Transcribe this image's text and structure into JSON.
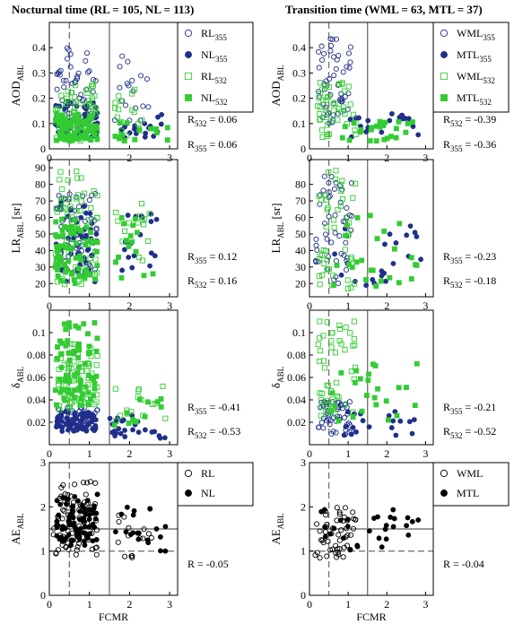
{
  "colors": {
    "dark_blue": "#1f2f8a",
    "green": "#33cc33",
    "black": "#000000",
    "grid": "#777777"
  },
  "columns": [
    {
      "title": "Nocturnal time (RL = 105, NL = 113)"
    },
    {
      "title": "Transition time (WML = 63, MTL = 37)"
    }
  ],
  "x_axis": {
    "label": "FCMR",
    "ticks": [
      0,
      1,
      2,
      3
    ],
    "range": [
      0,
      3.2
    ]
  },
  "chart_data": [
    {
      "type": "scatter",
      "panel": "AOD",
      "column": 0,
      "ylabel": "AOD",
      "ylabel_sub": "ABL",
      "ylim": [
        0,
        0.5
      ],
      "yticks": [
        "0",
        "0.1",
        "0.2",
        "0.3",
        "0.4"
      ],
      "ytick_values": [
        0,
        0.1,
        0.2,
        0.3,
        0.4
      ],
      "vlines": [
        {
          "x": 0.5,
          "style": "dashed"
        },
        {
          "x": 1.5,
          "style": "solid"
        }
      ],
      "legend": [
        {
          "name": "RL",
          "sub": "355",
          "marker": "open-circle",
          "color": "#1f2f8a"
        },
        {
          "name": "NL",
          "sub": "355",
          "marker": "filled-circle",
          "color": "#1f2f8a"
        },
        {
          "name": "RL",
          "sub": "532",
          "marker": "open-square",
          "color": "#33cc33"
        },
        {
          "name": "NL",
          "sub": "532",
          "marker": "filled-square",
          "color": "#33cc33"
        }
      ],
      "annotations": [
        {
          "name": "R",
          "sub": "532",
          "value": "= 0.06"
        },
        {
          "name": "R",
          "sub": "355",
          "value": "= 0.06"
        }
      ],
      "clusters": [
        {
          "marker": "open-circle",
          "color": "#1f2f8a",
          "n": 60,
          "x": [
            0.15,
            1.2
          ],
          "y": [
            0.06,
            0.4
          ],
          "seed": 11
        },
        {
          "marker": "open-circle",
          "color": "#1f2f8a",
          "n": 18,
          "x": [
            1.6,
            2.5
          ],
          "y": [
            0.08,
            0.38
          ],
          "seed": 12
        },
        {
          "marker": "filled-circle",
          "color": "#1f2f8a",
          "n": 55,
          "x": [
            0.15,
            1.2
          ],
          "y": [
            0.04,
            0.19
          ],
          "seed": 13
        },
        {
          "marker": "filled-circle",
          "color": "#1f2f8a",
          "n": 18,
          "x": [
            1.6,
            3.0
          ],
          "y": [
            0.04,
            0.15
          ],
          "seed": 14
        },
        {
          "marker": "open-square",
          "color": "#33cc33",
          "n": 60,
          "x": [
            0.15,
            1.2
          ],
          "y": [
            0.03,
            0.26
          ],
          "seed": 15
        },
        {
          "marker": "open-square",
          "color": "#33cc33",
          "n": 15,
          "x": [
            1.6,
            2.4
          ],
          "y": [
            0.05,
            0.24
          ],
          "seed": 16
        },
        {
          "marker": "filled-square",
          "color": "#33cc33",
          "n": 80,
          "x": [
            0.15,
            1.2
          ],
          "y": [
            0.03,
            0.14
          ],
          "seed": 17
        },
        {
          "marker": "filled-square",
          "color": "#33cc33",
          "n": 15,
          "x": [
            1.6,
            3.0
          ],
          "y": [
            0.03,
            0.11
          ],
          "seed": 18
        }
      ]
    },
    {
      "type": "scatter",
      "panel": "AOD",
      "column": 1,
      "ylabel": "AOD",
      "ylabel_sub": "ABL",
      "ylim": [
        0,
        0.5
      ],
      "yticks": [
        "0",
        "0.1",
        "0.2",
        "0.3",
        "0.4"
      ],
      "ytick_values": [
        0,
        0.1,
        0.2,
        0.3,
        0.4
      ],
      "vlines": [
        {
          "x": 0.5,
          "style": "dashed"
        },
        {
          "x": 1.5,
          "style": "solid"
        }
      ],
      "legend": [
        {
          "name": "WML",
          "sub": "355",
          "marker": "open-circle",
          "color": "#1f2f8a"
        },
        {
          "name": "MTL",
          "sub": "355",
          "marker": "filled-circle",
          "color": "#1f2f8a"
        },
        {
          "name": "WML",
          "sub": "532",
          "marker": "open-square",
          "color": "#33cc33"
        },
        {
          "name": "MTL",
          "sub": "532",
          "marker": "filled-square",
          "color": "#33cc33"
        }
      ],
      "annotations": [
        {
          "name": "R",
          "sub": "532",
          "value": "= -0.39"
        },
        {
          "name": "R",
          "sub": "355",
          "value": "= -0.36"
        }
      ],
      "clusters": [
        {
          "marker": "open-circle",
          "color": "#1f2f8a",
          "n": 50,
          "x": [
            0.2,
            1.1
          ],
          "y": [
            0.1,
            0.45
          ],
          "seed": 21
        },
        {
          "marker": "filled-circle",
          "color": "#1f2f8a",
          "n": 20,
          "x": [
            1.0,
            2.9
          ],
          "y": [
            0.04,
            0.14
          ],
          "seed": 22
        },
        {
          "marker": "open-square",
          "color": "#33cc33",
          "n": 45,
          "x": [
            0.2,
            1.2
          ],
          "y": [
            0.04,
            0.27
          ],
          "seed": 23
        },
        {
          "marker": "filled-square",
          "color": "#33cc33",
          "n": 25,
          "x": [
            0.8,
            2.9
          ],
          "y": [
            0.03,
            0.11
          ],
          "seed": 24
        }
      ]
    },
    {
      "type": "scatter",
      "panel": "LR",
      "column": 0,
      "ylabel": "LR",
      "ylabel_sub": "ABL",
      "ylabel_unit": "[sr]",
      "ylim": [
        12,
        95
      ],
      "yticks": [
        "20",
        "30",
        "40",
        "50",
        "60",
        "70",
        "80",
        "90"
      ],
      "ytick_values": [
        20,
        30,
        40,
        50,
        60,
        70,
        80,
        90
      ],
      "vlines": [
        {
          "x": 0.5,
          "style": "dashed"
        },
        {
          "x": 1.5,
          "style": "solid"
        }
      ],
      "annotations": [
        {
          "name": "R",
          "sub": "355",
          "value": "= 0.12"
        },
        {
          "name": "R",
          "sub": "532",
          "value": "= 0.16"
        }
      ],
      "clusters": [
        {
          "marker": "open-circle",
          "color": "#1f2f8a",
          "n": 60,
          "x": [
            0.15,
            1.2
          ],
          "y": [
            25,
            75
          ],
          "seed": 31
        },
        {
          "marker": "filled-circle",
          "color": "#1f2f8a",
          "n": 55,
          "x": [
            0.15,
            1.2
          ],
          "y": [
            20,
            70
          ],
          "seed": 32
        },
        {
          "marker": "filled-circle",
          "color": "#1f2f8a",
          "n": 18,
          "x": [
            1.7,
            2.8
          ],
          "y": [
            25,
            65
          ],
          "seed": 33
        },
        {
          "marker": "open-square",
          "color": "#33cc33",
          "n": 60,
          "x": [
            0.15,
            1.2
          ],
          "y": [
            18,
            88
          ],
          "seed": 34
        },
        {
          "marker": "open-square",
          "color": "#33cc33",
          "n": 15,
          "x": [
            1.6,
            2.5
          ],
          "y": [
            25,
            70
          ],
          "seed": 35
        },
        {
          "marker": "filled-square",
          "color": "#33cc33",
          "n": 70,
          "x": [
            0.15,
            1.2
          ],
          "y": [
            20,
            60
          ],
          "seed": 36
        },
        {
          "marker": "filled-square",
          "color": "#33cc33",
          "n": 15,
          "x": [
            1.6,
            2.9
          ],
          "y": [
            22,
            60
          ],
          "seed": 37
        }
      ]
    },
    {
      "type": "scatter",
      "panel": "LR",
      "column": 1,
      "ylabel": "LR",
      "ylabel_sub": "ABL",
      "ylabel_unit": "[sr]",
      "ylim": [
        12,
        95
      ],
      "yticks": [
        "20",
        "30",
        "40",
        "50",
        "60",
        "70",
        "80"
      ],
      "ytick_values": [
        20,
        30,
        40,
        50,
        60,
        70,
        80
      ],
      "vlines": [
        {
          "x": 0.5,
          "style": "dashed"
        },
        {
          "x": 1.5,
          "style": "solid"
        }
      ],
      "annotations": [
        {
          "name": "R",
          "sub": "355",
          "value": "= -0.23"
        },
        {
          "name": "R",
          "sub": "532",
          "value": "= -0.18"
        }
      ],
      "clusters": [
        {
          "marker": "open-circle",
          "color": "#1f2f8a",
          "n": 50,
          "x": [
            0.15,
            1.1
          ],
          "y": [
            20,
            85
          ],
          "seed": 41
        },
        {
          "marker": "filled-circle",
          "color": "#1f2f8a",
          "n": 22,
          "x": [
            0.6,
            2.9
          ],
          "y": [
            18,
            55
          ],
          "seed": 42
        },
        {
          "marker": "open-square",
          "color": "#33cc33",
          "n": 45,
          "x": [
            0.2,
            1.2
          ],
          "y": [
            15,
            90
          ],
          "seed": 43
        },
        {
          "marker": "filled-square",
          "color": "#33cc33",
          "n": 25,
          "x": [
            0.5,
            2.9
          ],
          "y": [
            18,
            62
          ],
          "seed": 44
        }
      ]
    },
    {
      "type": "scatter",
      "panel": "delta",
      "column": 0,
      "ylabel": "δ",
      "ylabel_sub": "ABL",
      "ylim": [
        0,
        0.12
      ],
      "yticks": [
        "0.02",
        "0.04",
        "0.06",
        "0.08",
        "0.1"
      ],
      "ytick_values": [
        0.02,
        0.04,
        0.06,
        0.08,
        0.1
      ],
      "vlines": [
        {
          "x": 0.5,
          "style": "dashed"
        },
        {
          "x": 1.5,
          "style": "solid"
        }
      ],
      "annotations": [
        {
          "name": "R",
          "sub": "355",
          "value": "= -0.41"
        },
        {
          "name": "R",
          "sub": "532",
          "value": "= -0.53"
        }
      ],
      "clusters": [
        {
          "marker": "open-circle",
          "color": "#1f2f8a",
          "n": 40,
          "x": [
            0.2,
            1.2
          ],
          "y": [
            0.015,
            0.035
          ],
          "seed": 51
        },
        {
          "marker": "filled-circle",
          "color": "#1f2f8a",
          "n": 70,
          "x": [
            0.15,
            1.2
          ],
          "y": [
            0.012,
            0.03
          ],
          "seed": 52
        },
        {
          "marker": "filled-circle",
          "color": "#1f2f8a",
          "n": 25,
          "x": [
            1.5,
            3.0
          ],
          "y": [
            0.005,
            0.03
          ],
          "seed": 53
        },
        {
          "marker": "open-square",
          "color": "#33cc33",
          "n": 70,
          "x": [
            0.15,
            1.2
          ],
          "y": [
            0.03,
            0.09
          ],
          "seed": 54
        },
        {
          "marker": "open-square",
          "color": "#33cc33",
          "n": 15,
          "x": [
            1.6,
            2.9
          ],
          "y": [
            0.02,
            0.06
          ],
          "seed": 55
        },
        {
          "marker": "filled-square",
          "color": "#33cc33",
          "n": 70,
          "x": [
            0.15,
            1.2
          ],
          "y": [
            0.035,
            0.11
          ],
          "seed": 56
        },
        {
          "marker": "filled-square",
          "color": "#33cc33",
          "n": 12,
          "x": [
            1.6,
            2.9
          ],
          "y": [
            0.015,
            0.045
          ],
          "seed": 57
        }
      ]
    },
    {
      "type": "scatter",
      "panel": "delta",
      "column": 1,
      "ylabel": "δ",
      "ylabel_sub": "ABL",
      "ylim": [
        0,
        0.12
      ],
      "yticks": [
        "0.02",
        "0.04",
        "0.06",
        "0.08",
        "0.1"
      ],
      "ytick_values": [
        0.02,
        0.04,
        0.06,
        0.08,
        0.1
      ],
      "vlines": [
        {
          "x": 0.5,
          "style": "dashed"
        },
        {
          "x": 1.5,
          "style": "solid"
        }
      ],
      "annotations": [
        {
          "name": "R",
          "sub": "355",
          "value": "= -0.21"
        },
        {
          "name": "R",
          "sub": "532",
          "value": "= -0.52"
        }
      ],
      "clusters": [
        {
          "marker": "open-circle",
          "color": "#1f2f8a",
          "n": 50,
          "x": [
            0.2,
            1.1
          ],
          "y": [
            0.008,
            0.04
          ],
          "seed": 61
        },
        {
          "marker": "filled-circle",
          "color": "#1f2f8a",
          "n": 20,
          "x": [
            0.8,
            2.8
          ],
          "y": [
            0.005,
            0.03
          ],
          "seed": 62
        },
        {
          "marker": "open-square",
          "color": "#33cc33",
          "n": 50,
          "x": [
            0.2,
            1.2
          ],
          "y": [
            0.025,
            0.11
          ],
          "seed": 63
        },
        {
          "marker": "filled-square",
          "color": "#33cc33",
          "n": 25,
          "x": [
            0.5,
            2.9
          ],
          "y": [
            0.02,
            0.075
          ],
          "seed": 64
        }
      ]
    },
    {
      "type": "scatter",
      "panel": "AE",
      "column": 0,
      "ylabel": "AE",
      "ylabel_sub": "ABL",
      "ylim": [
        0,
        3
      ],
      "yticks": [
        "0",
        "1",
        "2",
        "3"
      ],
      "ytick_values": [
        0,
        1,
        2,
        3
      ],
      "vlines": [
        {
          "x": 0.5,
          "style": "dashed"
        },
        {
          "x": 1.5,
          "style": "solid"
        }
      ],
      "hlines": [
        {
          "y": 1.5,
          "style": "solid"
        },
        {
          "y": 1.0,
          "style": "dashed"
        }
      ],
      "xlabel": "FCMR",
      "legend": [
        {
          "name": "RL",
          "marker": "open-circle",
          "color": "#000000"
        },
        {
          "name": "NL",
          "marker": "filled-circle",
          "color": "#000000"
        }
      ],
      "annotations": [
        {
          "name": "R",
          "value": "= -0.05"
        }
      ],
      "clusters": [
        {
          "marker": "open-circle",
          "color": "#000000",
          "n": 70,
          "x": [
            0.1,
            1.2
          ],
          "y": [
            0.9,
            2.6
          ],
          "seed": 71
        },
        {
          "marker": "open-circle",
          "color": "#000000",
          "n": 15,
          "x": [
            1.6,
            2.6
          ],
          "y": [
            0.8,
            2.0
          ],
          "seed": 72
        },
        {
          "marker": "filled-circle",
          "color": "#000000",
          "n": 85,
          "x": [
            0.15,
            1.2
          ],
          "y": [
            1.1,
            2.3
          ],
          "seed": 73
        },
        {
          "marker": "filled-circle",
          "color": "#000000",
          "n": 20,
          "x": [
            1.6,
            2.9
          ],
          "y": [
            1.0,
            2.0
          ],
          "seed": 74
        }
      ]
    },
    {
      "type": "scatter",
      "panel": "AE",
      "column": 1,
      "ylabel": "AE",
      "ylabel_sub": "ABL",
      "ylim": [
        0,
        3
      ],
      "yticks": [
        "0",
        "1",
        "2",
        "3"
      ],
      "ytick_values": [
        0,
        1,
        2,
        3
      ],
      "vlines": [
        {
          "x": 0.5,
          "style": "dashed"
        },
        {
          "x": 1.5,
          "style": "solid"
        }
      ],
      "hlines": [
        {
          "y": 1.5,
          "style": "solid"
        },
        {
          "y": 1.0,
          "style": "dashed"
        }
      ],
      "xlabel": "FCMR",
      "legend": [
        {
          "name": "WML",
          "marker": "open-circle",
          "color": "#000000"
        },
        {
          "name": "MTL",
          "marker": "filled-circle",
          "color": "#000000"
        }
      ],
      "annotations": [
        {
          "name": "R",
          "value": "= -0.04"
        }
      ],
      "clusters": [
        {
          "marker": "open-circle",
          "color": "#000000",
          "n": 50,
          "x": [
            0.15,
            1.2
          ],
          "y": [
            0.8,
            2.0
          ],
          "seed": 81
        },
        {
          "marker": "filled-circle",
          "color": "#000000",
          "n": 30,
          "x": [
            0.3,
            2.9
          ],
          "y": [
            1.0,
            2.0
          ],
          "seed": 82
        }
      ]
    }
  ]
}
